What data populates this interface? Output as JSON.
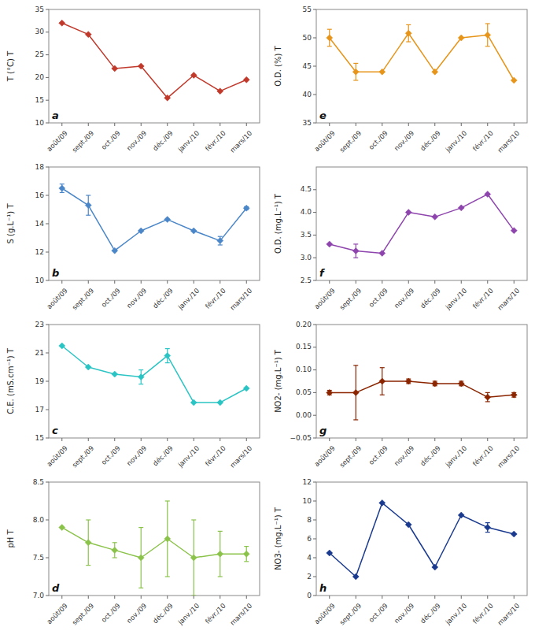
{
  "chart_data": [
    {
      "type": "line",
      "marker": "diamond",
      "grid": false,
      "categories": [
        "août/09",
        "sept./09",
        "oct./09",
        "nov./09",
        "déc./09",
        "janv./10",
        "févr./10",
        "mars/10"
      ],
      "values": [
        32.0,
        29.5,
        22.0,
        22.5,
        15.5,
        20.5,
        17.0,
        19.5
      ],
      "yerr": [
        0,
        0,
        0,
        0,
        0,
        0,
        0,
        0
      ],
      "ylim": [
        10,
        35
      ],
      "yticks": [
        10,
        15,
        20,
        25,
        30,
        35
      ],
      "ylabel": "T (°C) T",
      "annotation": "a",
      "color": "#c0392b"
    },
    {
      "type": "line",
      "marker": "diamond",
      "grid": false,
      "categories": [
        "août/09",
        "sept./09",
        "oct./09",
        "nov./09",
        "déc./09",
        "janv./10",
        "févr./10",
        "mars/10"
      ],
      "values": [
        50.0,
        44.0,
        44.0,
        50.8,
        44.0,
        50.0,
        50.5,
        42.5
      ],
      "yerr": [
        1.5,
        1.5,
        0,
        1.5,
        0,
        0,
        2.0,
        0
      ],
      "ylim": [
        35,
        55
      ],
      "yticks": [
        35,
        40,
        45,
        50,
        55
      ],
      "ylabel": "O.D. (%) T",
      "annotation": "e",
      "color": "#e6951a"
    },
    {
      "type": "line",
      "marker": "diamond",
      "grid": false,
      "categories": [
        "août/09",
        "sept./09",
        "oct./09",
        "nov./09",
        "déc./09",
        "janv./10",
        "févr./10",
        "mars/10"
      ],
      "values": [
        16.5,
        15.3,
        12.1,
        13.5,
        14.3,
        13.5,
        12.8,
        15.1
      ],
      "yerr": [
        0.3,
        0.7,
        0,
        0,
        0,
        0,
        0.3,
        0.1
      ],
      "ylim": [
        10,
        18
      ],
      "yticks": [
        10,
        12,
        14,
        16,
        18
      ],
      "ylabel": "S (g.L⁻¹) T",
      "annotation": "b",
      "color": "#4a86c8"
    },
    {
      "type": "line",
      "marker": "diamond",
      "grid": false,
      "categories": [
        "août/09",
        "sept./09",
        "oct./09",
        "nov./09",
        "déc./09",
        "janv./10",
        "févr./10",
        "mars/10"
      ],
      "values": [
        3.3,
        3.15,
        3.1,
        4.0,
        3.9,
        4.1,
        4.4,
        3.6
      ],
      "yerr": [
        0,
        0.15,
        0,
        0,
        0,
        0,
        0,
        0
      ],
      "ylim": [
        2.5,
        5.0
      ],
      "yticks": [
        2.5,
        {
          "value": 3.0,
          "label": "3.0"
        },
        3.5,
        {
          "value": 4.0,
          "label": "4.0"
        },
        4.5
      ],
      "ylabel": "O.D. (mg.L⁻¹) T",
      "annotation": "f",
      "color": "#8e44ad"
    },
    {
      "type": "line",
      "marker": "diamond",
      "grid": false,
      "categories": [
        "août/09",
        "sept./09",
        "oct./09",
        "nov./09",
        "déc./09",
        "janv./10",
        "févr./10",
        "mars/10"
      ],
      "values": [
        21.5,
        20.0,
        19.5,
        19.3,
        20.8,
        17.5,
        17.5,
        18.5
      ],
      "yerr": [
        0,
        0,
        0,
        0.5,
        0.5,
        0,
        0,
        0
      ],
      "ylim": [
        15,
        23
      ],
      "yticks": [
        15,
        17,
        19,
        21,
        23
      ],
      "ylabel": "C.E. (mS.cm⁻¹) T",
      "annotation": "c",
      "color": "#2bc4c4"
    },
    {
      "type": "line",
      "marker": "diamond",
      "grid": false,
      "categories": [
        "août/09",
        "sept./09",
        "oct./09",
        "nov./09",
        "déc./09",
        "janv./10",
        "févr./10",
        "mars/10"
      ],
      "values": [
        0.05,
        0.05,
        0.075,
        0.075,
        0.07,
        0.07,
        0.04,
        0.045
      ],
      "yerr": [
        0.005,
        0.06,
        0.03,
        0.005,
        0.005,
        0.005,
        0.01,
        0.005
      ],
      "ylim": [
        -0.05,
        0.2
      ],
      "yticks": [
        {
          "value": -0.05,
          "label": "−0.05"
        },
        {
          "value": 0,
          "label": "0.00"
        },
        0.05,
        {
          "value": 0.1,
          "label": "0.10"
        },
        0.15,
        {
          "value": 0.2,
          "label": "0.20"
        }
      ],
      "ylabel": "NO2- (mg.L⁻¹) T",
      "annotation": "g",
      "color": "#8b2500"
    },
    {
      "type": "line",
      "marker": "diamond",
      "grid": false,
      "categories": [
        "août/09",
        "sept./09",
        "oct./09",
        "nov./09",
        "déc./09",
        "janv./10",
        "févr./10",
        "mars/10"
      ],
      "values": [
        7.9,
        7.7,
        7.6,
        7.5,
        7.75,
        7.5,
        7.55,
        7.55
      ],
      "yerr": [
        0.0,
        0.3,
        0.1,
        0.4,
        0.5,
        0.5,
        0.3,
        0.1
      ],
      "ylim": [
        7.0,
        8.5
      ],
      "yticks": [
        {
          "value": 7.0,
          "label": "7.0"
        },
        7.5,
        {
          "value": 8.0,
          "label": "8.0"
        },
        8.5
      ],
      "ylabel": "pH T",
      "annotation": "d",
      "color": "#8bc34a"
    },
    {
      "type": "line",
      "marker": "diamond",
      "grid": false,
      "categories": [
        "août/09",
        "sept./09",
        "oct./09",
        "nov./09",
        "déc./09",
        "janv./10",
        "févr./10",
        "mars/10"
      ],
      "values": [
        4.5,
        2.0,
        9.8,
        7.5,
        3.0,
        8.5,
        7.2,
        6.5
      ],
      "yerr": [
        0,
        0,
        0,
        0,
        0,
        0,
        0.5,
        0
      ],
      "ylim": [
        0,
        12
      ],
      "yticks": [
        0,
        2,
        4,
        6,
        8,
        10,
        12
      ],
      "ylabel": "NO3- (mg.L⁻¹) T",
      "annotation": "h",
      "color": "#1a3a8f"
    }
  ]
}
